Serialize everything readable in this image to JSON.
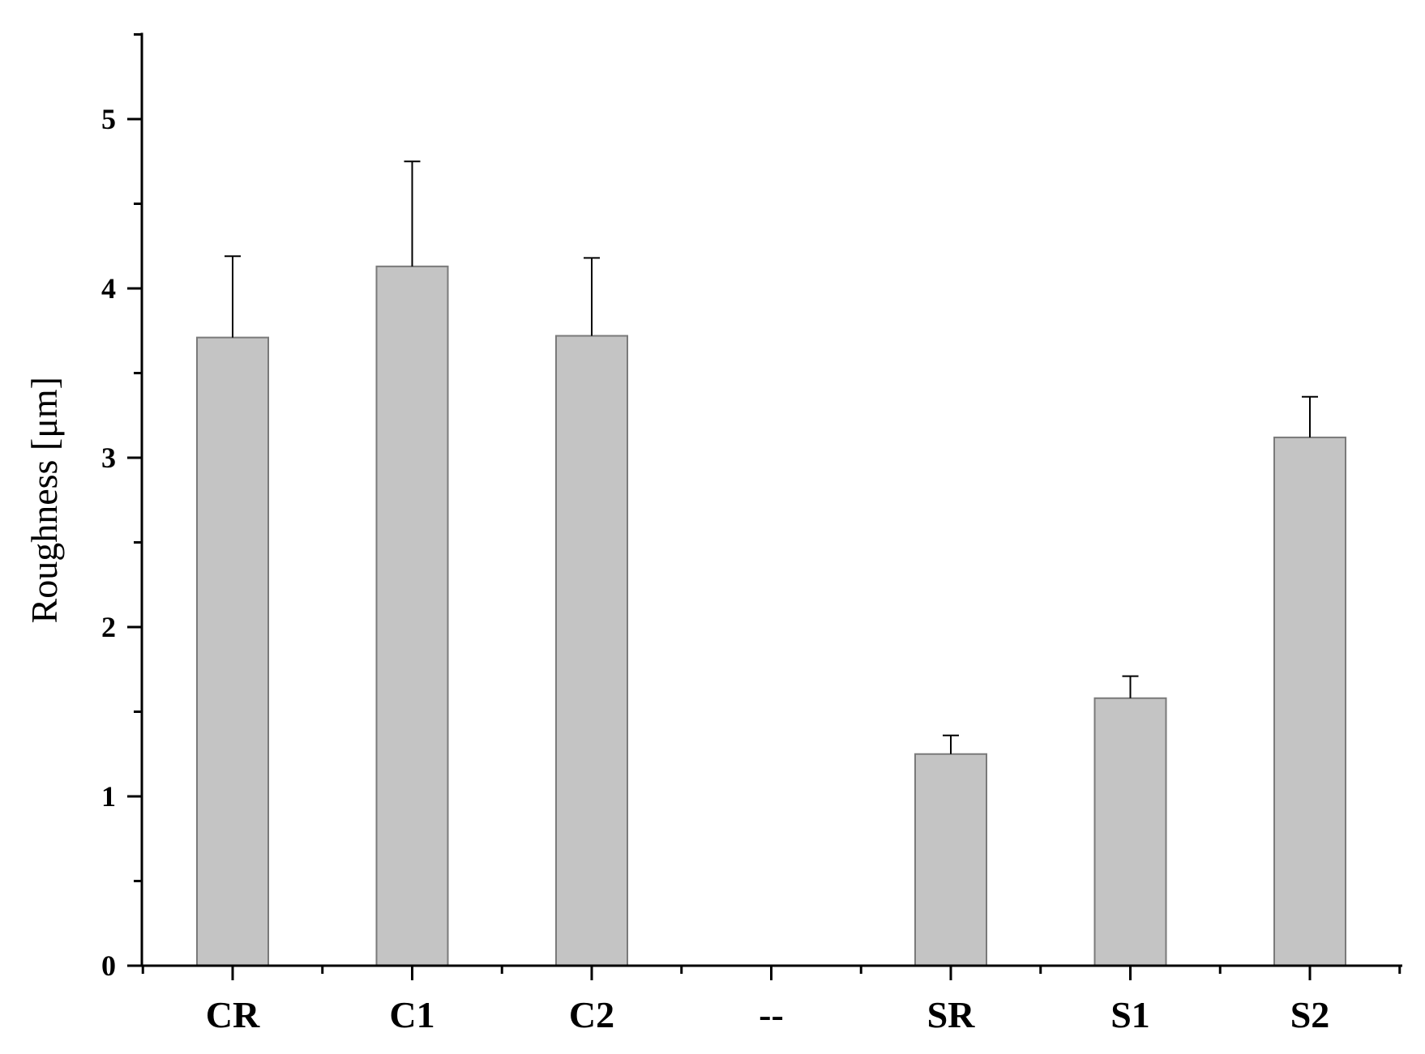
{
  "chart_data": {
    "type": "bar",
    "categories": [
      "CR",
      "C1",
      "C2",
      "--",
      "SR",
      "S1",
      "S2"
    ],
    "values": [
      3.71,
      4.13,
      3.72,
      null,
      1.25,
      1.58,
      3.12
    ],
    "error_upper": [
      4.19,
      4.75,
      4.18,
      null,
      1.36,
      1.71,
      3.36
    ],
    "title": "",
    "xlabel": "",
    "ylabel": "Roughness [μm]",
    "ylim": [
      0,
      5.5
    ],
    "yticks": [
      0,
      1,
      2,
      3,
      4,
      5
    ],
    "grid": false,
    "colors": {
      "bar_fill": "#c4c4c4",
      "bar_stroke": "#7a7a7a",
      "axis": "#000000"
    }
  }
}
